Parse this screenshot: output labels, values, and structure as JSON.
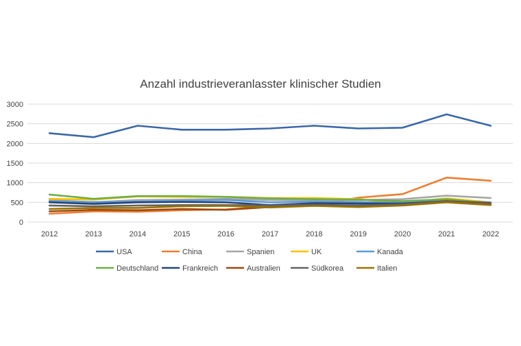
{
  "chart_data": {
    "type": "line",
    "title": "Anzahl industrieveranlasster klinischer Studien",
    "xlabel": "",
    "ylabel": "",
    "ylim": [
      0,
      3000
    ],
    "yticks": [
      0,
      500,
      1000,
      1500,
      2000,
      2500,
      3000
    ],
    "x": [
      "2012",
      "2013",
      "2014",
      "2015",
      "2016",
      "2017",
      "2018",
      "2019",
      "2020",
      "2021",
      "2022"
    ],
    "grid": true,
    "legend_position": "bottom",
    "series": [
      {
        "name": "USA",
        "color": "#3a67a8",
        "values": [
          2260,
          2160,
          2450,
          2350,
          2350,
          2380,
          2450,
          2380,
          2400,
          2740,
          2450
        ]
      },
      {
        "name": "China",
        "color": "#ed7d31",
        "values": [
          210,
          270,
          260,
          300,
          320,
          390,
          430,
          620,
          710,
          1130,
          1050
        ]
      },
      {
        "name": "Spanien",
        "color": "#a5a5a5",
        "values": [
          560,
          500,
          560,
          570,
          590,
          560,
          560,
          560,
          580,
          670,
          610
        ]
      },
      {
        "name": "UK",
        "color": "#ffc000",
        "values": [
          590,
          570,
          650,
          640,
          640,
          610,
          610,
          580,
          490,
          600,
          500
        ]
      },
      {
        "name": "Kanada",
        "color": "#5b9bd5",
        "values": [
          530,
          510,
          520,
          540,
          560,
          500,
          520,
          510,
          490,
          550,
          500
        ]
      },
      {
        "name": "Deutschland",
        "color": "#70ad47",
        "values": [
          700,
          590,
          660,
          660,
          640,
          600,
          580,
          570,
          530,
          580,
          480
        ]
      },
      {
        "name": "Frankreich",
        "color": "#264478",
        "values": [
          500,
          460,
          500,
          510,
          500,
          430,
          480,
          470,
          470,
          530,
          480
        ]
      },
      {
        "name": "Australien",
        "color": "#9e480e",
        "values": [
          270,
          310,
          300,
          330,
          310,
          380,
          420,
          390,
          450,
          530,
          470
        ]
      },
      {
        "name": "Südkorea",
        "color": "#636363",
        "values": [
          420,
          400,
          420,
          430,
          430,
          420,
          440,
          420,
          450,
          520,
          450
        ]
      },
      {
        "name": "Italien",
        "color": "#997300",
        "values": [
          330,
          360,
          360,
          400,
          410,
          370,
          410,
          380,
          420,
          500,
          430
        ]
      }
    ]
  }
}
